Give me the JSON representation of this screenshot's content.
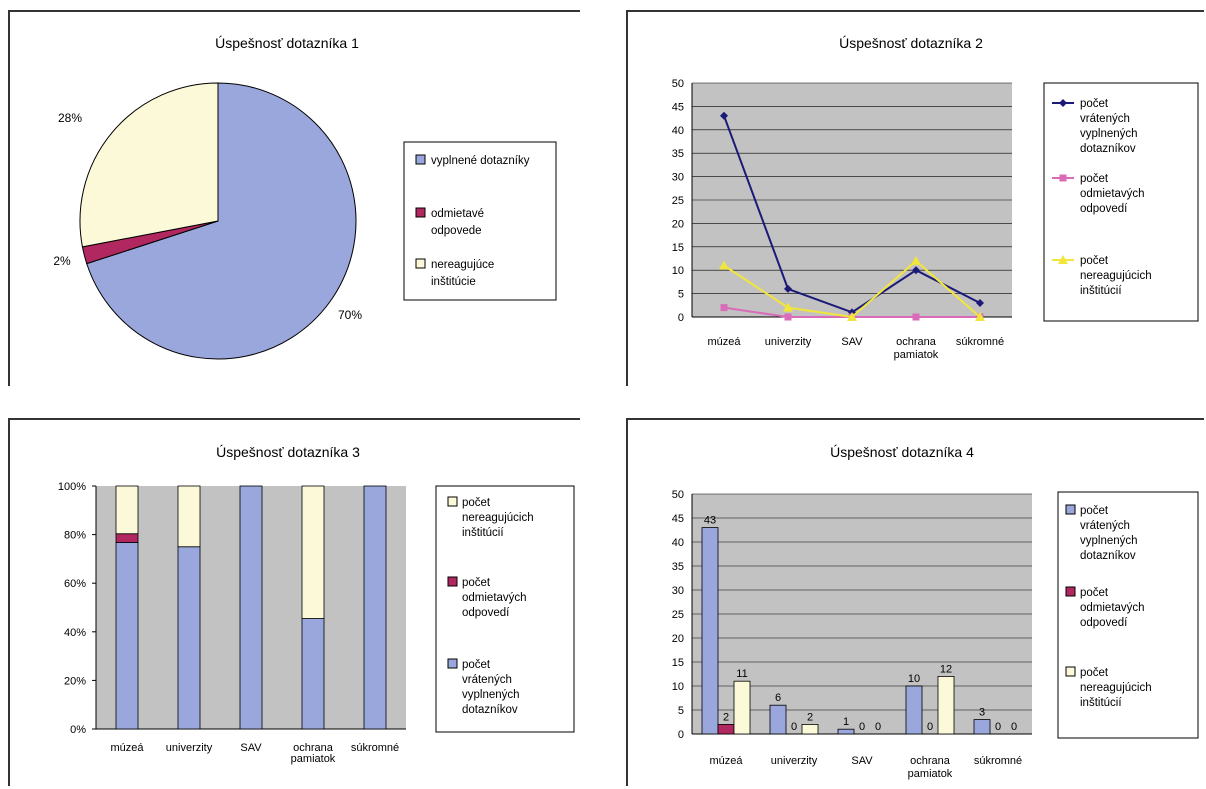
{
  "chart_data": [
    {
      "type": "pie",
      "title": "Úspešnosť dotazníka 1",
      "labels": [
        "vyplnené dotazníky",
        "odmietavé odpovede",
        "nereagujúce inštitúcie"
      ],
      "values": [
        70,
        2,
        28
      ],
      "value_labels": [
        "70%",
        "2%",
        "28%"
      ],
      "colors": [
        "#9aa7dc",
        "#b0285f",
        "#fbf9d8"
      ],
      "legend": "right"
    },
    {
      "type": "line",
      "title": "Úspešnosť dotazníka 2",
      "categories": [
        "múzeá",
        "univerzity",
        "SAV",
        "ochrana pamiatok",
        "súkromné"
      ],
      "series": [
        {
          "name": "počet vrátených vyplnených dotazníkov",
          "values": [
            43,
            6,
            1,
            10,
            3
          ],
          "color": "#1c1a78"
        },
        {
          "name": "počet odmietavých odpovedí",
          "values": [
            2,
            0,
            0,
            0,
            0
          ],
          "color": "#d96bb8"
        },
        {
          "name": "počet nereagujúcich inštitúcií",
          "values": [
            11,
            2,
            0,
            12,
            0
          ],
          "color": "#f2e63a"
        }
      ],
      "ylim": [
        0,
        50
      ],
      "yticks": [
        0,
        5,
        10,
        15,
        20,
        25,
        30,
        35,
        40,
        45,
        50
      ],
      "grid": true,
      "legend": "right"
    },
    {
      "type": "bar",
      "stacked_percent": true,
      "title": "Úspešnosť dotazníka 3",
      "categories": [
        "múzeá",
        "univerzity",
        "SAV",
        "ochrana pamiatok",
        "súkromné"
      ],
      "series": [
        {
          "name": "počet vrátených vyplnených dotazníkov",
          "values": [
            43,
            6,
            1,
            10,
            3
          ],
          "color": "#9aa7dc"
        },
        {
          "name": "počet odmietavých odpovedí",
          "values": [
            2,
            0,
            0,
            0,
            0
          ],
          "color": "#b0285f"
        },
        {
          "name": "počet nereagujúcich inštitúcií",
          "values": [
            11,
            2,
            0,
            12,
            0
          ],
          "color": "#fbf9d8"
        }
      ],
      "yticks": [
        "0%",
        "20%",
        "40%",
        "60%",
        "80%",
        "100%"
      ],
      "ylim": [
        0,
        100
      ],
      "legend": "right"
    },
    {
      "type": "bar",
      "title": "Úspešnosť dotazníka 4",
      "categories": [
        "múzeá",
        "univerzity",
        "SAV",
        "ochrana pamiatok",
        "súkromné"
      ],
      "series": [
        {
          "name": "počet vrátených vyplnených dotazníkov",
          "values": [
            43,
            6,
            1,
            10,
            3
          ],
          "color": "#9aa7dc"
        },
        {
          "name": "počet odmietavých odpovedí",
          "values": [
            2,
            0,
            0,
            0,
            0
          ],
          "color": "#b0285f"
        },
        {
          "name": "počet nereagujúcich inštitúcií",
          "values": [
            11,
            2,
            0,
            12,
            0
          ],
          "color": "#fbf9d8"
        }
      ],
      "ylim": [
        0,
        50
      ],
      "yticks": [
        0,
        5,
        10,
        15,
        20,
        25,
        30,
        35,
        40,
        45,
        50
      ],
      "data_labels": true,
      "grid": true,
      "legend": "right"
    }
  ]
}
